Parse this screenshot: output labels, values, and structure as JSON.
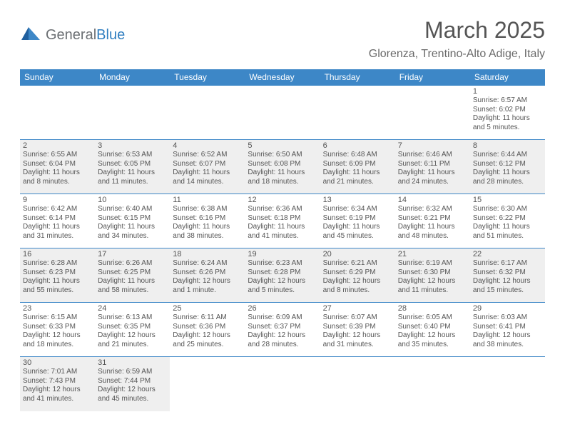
{
  "logo": {
    "text1": "General",
    "text2": "Blue"
  },
  "title": "March 2025",
  "location": "Glorenza, Trentino-Alto Adige, Italy",
  "colors": {
    "header_bg": "#3d87c7",
    "header_fg": "#ffffff",
    "border": "#3d87c7",
    "shaded": "#efefef",
    "text": "#555555",
    "logo_gray": "#6b6f73",
    "logo_blue": "#2f7ec0"
  },
  "dayHeaders": [
    "Sunday",
    "Monday",
    "Tuesday",
    "Wednesday",
    "Thursday",
    "Friday",
    "Saturday"
  ],
  "weeks": [
    [
      {
        "n": "",
        "sr": "",
        "ss": "",
        "dl": "",
        "shaded": false,
        "empty": true
      },
      {
        "n": "",
        "sr": "",
        "ss": "",
        "dl": "",
        "shaded": false,
        "empty": true
      },
      {
        "n": "",
        "sr": "",
        "ss": "",
        "dl": "",
        "shaded": false,
        "empty": true
      },
      {
        "n": "",
        "sr": "",
        "ss": "",
        "dl": "",
        "shaded": false,
        "empty": true
      },
      {
        "n": "",
        "sr": "",
        "ss": "",
        "dl": "",
        "shaded": false,
        "empty": true
      },
      {
        "n": "",
        "sr": "",
        "ss": "",
        "dl": "",
        "shaded": false,
        "empty": true
      },
      {
        "n": "1",
        "sr": "6:57 AM",
        "ss": "6:02 PM",
        "dl": "11 hours and 5 minutes.",
        "shaded": false
      }
    ],
    [
      {
        "n": "2",
        "sr": "6:55 AM",
        "ss": "6:04 PM",
        "dl": "11 hours and 8 minutes.",
        "shaded": true
      },
      {
        "n": "3",
        "sr": "6:53 AM",
        "ss": "6:05 PM",
        "dl": "11 hours and 11 minutes.",
        "shaded": true
      },
      {
        "n": "4",
        "sr": "6:52 AM",
        "ss": "6:07 PM",
        "dl": "11 hours and 14 minutes.",
        "shaded": true
      },
      {
        "n": "5",
        "sr": "6:50 AM",
        "ss": "6:08 PM",
        "dl": "11 hours and 18 minutes.",
        "shaded": true
      },
      {
        "n": "6",
        "sr": "6:48 AM",
        "ss": "6:09 PM",
        "dl": "11 hours and 21 minutes.",
        "shaded": true
      },
      {
        "n": "7",
        "sr": "6:46 AM",
        "ss": "6:11 PM",
        "dl": "11 hours and 24 minutes.",
        "shaded": true
      },
      {
        "n": "8",
        "sr": "6:44 AM",
        "ss": "6:12 PM",
        "dl": "11 hours and 28 minutes.",
        "shaded": true
      }
    ],
    [
      {
        "n": "9",
        "sr": "6:42 AM",
        "ss": "6:14 PM",
        "dl": "11 hours and 31 minutes.",
        "shaded": false
      },
      {
        "n": "10",
        "sr": "6:40 AM",
        "ss": "6:15 PM",
        "dl": "11 hours and 34 minutes.",
        "shaded": false
      },
      {
        "n": "11",
        "sr": "6:38 AM",
        "ss": "6:16 PM",
        "dl": "11 hours and 38 minutes.",
        "shaded": false
      },
      {
        "n": "12",
        "sr": "6:36 AM",
        "ss": "6:18 PM",
        "dl": "11 hours and 41 minutes.",
        "shaded": false
      },
      {
        "n": "13",
        "sr": "6:34 AM",
        "ss": "6:19 PM",
        "dl": "11 hours and 45 minutes.",
        "shaded": false
      },
      {
        "n": "14",
        "sr": "6:32 AM",
        "ss": "6:21 PM",
        "dl": "11 hours and 48 minutes.",
        "shaded": false
      },
      {
        "n": "15",
        "sr": "6:30 AM",
        "ss": "6:22 PM",
        "dl": "11 hours and 51 minutes.",
        "shaded": false
      }
    ],
    [
      {
        "n": "16",
        "sr": "6:28 AM",
        "ss": "6:23 PM",
        "dl": "11 hours and 55 minutes.",
        "shaded": true
      },
      {
        "n": "17",
        "sr": "6:26 AM",
        "ss": "6:25 PM",
        "dl": "11 hours and 58 minutes.",
        "shaded": true
      },
      {
        "n": "18",
        "sr": "6:24 AM",
        "ss": "6:26 PM",
        "dl": "12 hours and 1 minute.",
        "shaded": true
      },
      {
        "n": "19",
        "sr": "6:23 AM",
        "ss": "6:28 PM",
        "dl": "12 hours and 5 minutes.",
        "shaded": true
      },
      {
        "n": "20",
        "sr": "6:21 AM",
        "ss": "6:29 PM",
        "dl": "12 hours and 8 minutes.",
        "shaded": true
      },
      {
        "n": "21",
        "sr": "6:19 AM",
        "ss": "6:30 PM",
        "dl": "12 hours and 11 minutes.",
        "shaded": true
      },
      {
        "n": "22",
        "sr": "6:17 AM",
        "ss": "6:32 PM",
        "dl": "12 hours and 15 minutes.",
        "shaded": true
      }
    ],
    [
      {
        "n": "23",
        "sr": "6:15 AM",
        "ss": "6:33 PM",
        "dl": "12 hours and 18 minutes.",
        "shaded": false
      },
      {
        "n": "24",
        "sr": "6:13 AM",
        "ss": "6:35 PM",
        "dl": "12 hours and 21 minutes.",
        "shaded": false
      },
      {
        "n": "25",
        "sr": "6:11 AM",
        "ss": "6:36 PM",
        "dl": "12 hours and 25 minutes.",
        "shaded": false
      },
      {
        "n": "26",
        "sr": "6:09 AM",
        "ss": "6:37 PM",
        "dl": "12 hours and 28 minutes.",
        "shaded": false
      },
      {
        "n": "27",
        "sr": "6:07 AM",
        "ss": "6:39 PM",
        "dl": "12 hours and 31 minutes.",
        "shaded": false
      },
      {
        "n": "28",
        "sr": "6:05 AM",
        "ss": "6:40 PM",
        "dl": "12 hours and 35 minutes.",
        "shaded": false
      },
      {
        "n": "29",
        "sr": "6:03 AM",
        "ss": "6:41 PM",
        "dl": "12 hours and 38 minutes.",
        "shaded": false
      }
    ],
    [
      {
        "n": "30",
        "sr": "7:01 AM",
        "ss": "7:43 PM",
        "dl": "12 hours and 41 minutes.",
        "shaded": true
      },
      {
        "n": "31",
        "sr": "6:59 AM",
        "ss": "7:44 PM",
        "dl": "12 hours and 45 minutes.",
        "shaded": true
      },
      {
        "n": "",
        "sr": "",
        "ss": "",
        "dl": "",
        "shaded": false,
        "empty": true
      },
      {
        "n": "",
        "sr": "",
        "ss": "",
        "dl": "",
        "shaded": false,
        "empty": true
      },
      {
        "n": "",
        "sr": "",
        "ss": "",
        "dl": "",
        "shaded": false,
        "empty": true
      },
      {
        "n": "",
        "sr": "",
        "ss": "",
        "dl": "",
        "shaded": false,
        "empty": true
      },
      {
        "n": "",
        "sr": "",
        "ss": "",
        "dl": "",
        "shaded": false,
        "empty": true
      }
    ]
  ],
  "labels": {
    "sunrise": "Sunrise: ",
    "sunset": "Sunset: ",
    "daylight": "Daylight: "
  }
}
